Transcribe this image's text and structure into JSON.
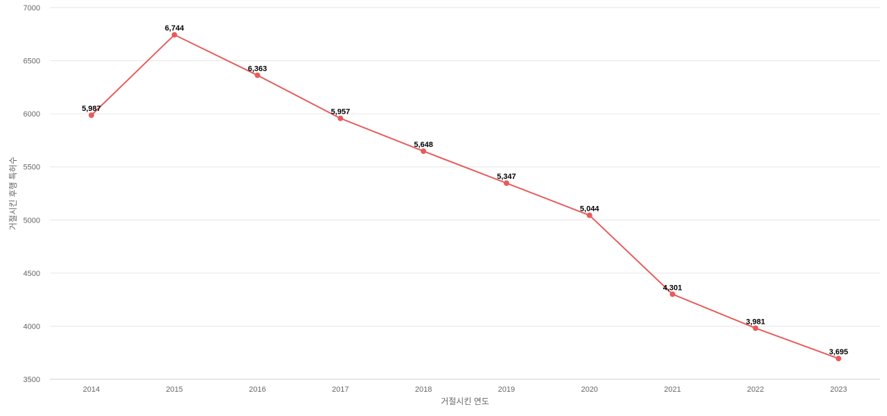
{
  "chart_data": {
    "type": "line",
    "xlabel": "거절시킨 연도",
    "ylabel": "거절시킨 후행 특허수",
    "categories": [
      "2014",
      "2015",
      "2016",
      "2017",
      "2018",
      "2019",
      "2020",
      "2021",
      "2022",
      "2023"
    ],
    "series": [
      {
        "values": [
          5987,
          6744,
          6363,
          5957,
          5648,
          5347,
          5044,
          4301,
          3981,
          3695
        ],
        "labels": [
          "5,987",
          "6,744",
          "6,363",
          "5,957",
          "5,648",
          "5,347",
          "5,044",
          "4,301",
          "3,981",
          "3,695"
        ],
        "color": "#e85b5b"
      }
    ],
    "ylim": [
      3500,
      7000
    ],
    "yticks": [
      "3500",
      "4000",
      "4500",
      "5000",
      "5500",
      "6000",
      "6500",
      "7000"
    ],
    "grid": true,
    "legend": "none"
  }
}
